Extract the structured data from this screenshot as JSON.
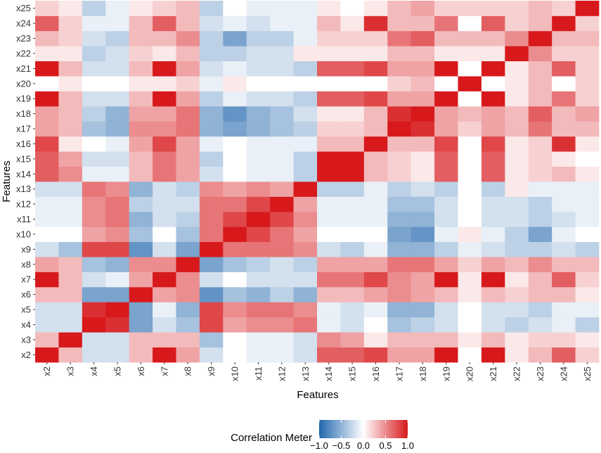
{
  "chart_data": {
    "type": "heatmap",
    "title": "",
    "xlabel": "Features",
    "ylabel": "Features",
    "x_labels": [
      "x2",
      "x3",
      "x4",
      "x5",
      "x6",
      "x7",
      "x8",
      "x9",
      "x10",
      "x11",
      "x12",
      "x13",
      "x14",
      "x15",
      "x16",
      "x17",
      "x18",
      "x19",
      "x20",
      "x21",
      "x22",
      "x23",
      "x24",
      "x25"
    ],
    "y_labels": [
      "x2",
      "x3",
      "x4",
      "x5",
      "x6",
      "x7",
      "x8",
      "x9",
      "x10",
      "x11",
      "x12",
      "x13",
      "x14",
      "x15",
      "x16",
      "x17",
      "x18",
      "x19",
      "x20",
      "x21",
      "x22",
      "x23",
      "x24",
      "x25"
    ],
    "values": [
      [
        1.0,
        0.3,
        -0.2,
        -0.2,
        0.3,
        1.0,
        0.4,
        -0.2,
        0.0,
        -0.1,
        -0.1,
        -0.2,
        0.7,
        0.7,
        0.8,
        0.4,
        0.4,
        1.0,
        0.0,
        1.0,
        0.1,
        0.3,
        0.7,
        0.2
      ],
      [
        0.3,
        1.0,
        -0.2,
        -0.2,
        0.3,
        0.3,
        0.3,
        -0.4,
        0.0,
        -0.1,
        -0.1,
        -0.2,
        0.5,
        0.4,
        0.1,
        0.3,
        0.3,
        0.3,
        0.1,
        0.3,
        0.1,
        0.2,
        0.2,
        0.1
      ],
      [
        -0.2,
        -0.2,
        1.0,
        0.9,
        -0.6,
        -0.2,
        -0.4,
        0.8,
        0.4,
        0.5,
        0.5,
        0.6,
        -0.1,
        -0.2,
        0.0,
        -0.4,
        -0.3,
        -0.2,
        0.0,
        -0.2,
        -0.3,
        -0.2,
        -0.1,
        -0.3
      ],
      [
        -0.2,
        -0.2,
        0.9,
        1.0,
        -0.6,
        -0.1,
        -0.5,
        0.8,
        0.5,
        0.6,
        0.6,
        0.5,
        -0.1,
        -0.2,
        -0.1,
        -0.5,
        -0.5,
        -0.2,
        0.0,
        -0.2,
        -0.2,
        -0.3,
        -0.1,
        -0.1
      ],
      [
        0.3,
        0.3,
        -0.6,
        -0.6,
        1.0,
        0.4,
        0.5,
        -0.7,
        -0.4,
        -0.5,
        -0.3,
        -0.5,
        0.3,
        0.3,
        0.4,
        0.5,
        0.4,
        0.3,
        0.1,
        0.3,
        0.2,
        0.3,
        0.3,
        0.1
      ],
      [
        1.0,
        0.3,
        -0.2,
        -0.1,
        0.4,
        1.0,
        0.5,
        -0.2,
        0.0,
        -0.2,
        -0.2,
        -0.2,
        0.6,
        0.6,
        0.8,
        0.5,
        0.4,
        1.0,
        0.1,
        1.0,
        0.1,
        0.3,
        0.7,
        0.2
      ],
      [
        0.4,
        0.3,
        -0.4,
        -0.5,
        0.5,
        0.5,
        1.0,
        -0.6,
        -0.4,
        -0.3,
        -0.2,
        -0.3,
        0.4,
        0.4,
        0.4,
        0.6,
        0.6,
        0.4,
        0.2,
        0.4,
        0.3,
        0.5,
        0.3,
        0.3
      ],
      [
        -0.2,
        -0.4,
        0.8,
        0.8,
        -0.7,
        -0.2,
        -0.6,
        1.0,
        0.6,
        0.6,
        0.6,
        0.5,
        -0.2,
        -0.3,
        -0.1,
        -0.5,
        -0.5,
        -0.3,
        -0.1,
        -0.2,
        -0.3,
        -0.3,
        -0.2,
        -0.3
      ],
      [
        0.0,
        0.0,
        0.4,
        0.5,
        -0.4,
        0.0,
        -0.4,
        0.6,
        1.0,
        0.8,
        0.6,
        0.4,
        0.0,
        0.0,
        0.0,
        -0.6,
        -0.7,
        -0.1,
        0.1,
        -0.1,
        -0.3,
        -0.6,
        -0.1,
        0.0
      ],
      [
        -0.1,
        -0.1,
        0.5,
        0.6,
        -0.5,
        -0.2,
        -0.3,
        0.6,
        0.8,
        1.0,
        0.8,
        0.5,
        -0.1,
        -0.1,
        -0.1,
        -0.5,
        -0.5,
        -0.2,
        0.0,
        -0.2,
        -0.2,
        -0.3,
        -0.2,
        -0.1
      ],
      [
        -0.1,
        -0.1,
        0.5,
        0.6,
        -0.3,
        -0.2,
        -0.2,
        0.6,
        0.6,
        0.8,
        1.0,
        0.4,
        -0.1,
        -0.1,
        -0.1,
        -0.4,
        -0.4,
        -0.2,
        0.0,
        -0.2,
        -0.2,
        -0.3,
        -0.1,
        -0.1
      ],
      [
        -0.2,
        -0.2,
        0.6,
        0.5,
        -0.5,
        -0.2,
        -0.3,
        0.5,
        0.4,
        0.5,
        0.4,
        1.0,
        -0.3,
        -0.3,
        -0.1,
        -0.3,
        -0.2,
        -0.3,
        0.0,
        -0.3,
        0.1,
        -0.1,
        -0.1,
        -0.1
      ],
      [
        0.7,
        0.5,
        -0.1,
        -0.1,
        0.3,
        0.6,
        0.4,
        -0.2,
        0.0,
        -0.1,
        -0.1,
        -0.3,
        1.0,
        1.0,
        0.3,
        0.2,
        0.1,
        0.7,
        0.0,
        0.7,
        0.1,
        0.2,
        0.3,
        0.1
      ],
      [
        0.7,
        0.4,
        -0.2,
        -0.2,
        0.3,
        0.6,
        0.4,
        -0.3,
        0.0,
        -0.1,
        -0.1,
        -0.3,
        1.0,
        1.0,
        0.3,
        0.2,
        0.1,
        0.7,
        0.0,
        0.7,
        0.1,
        0.2,
        0.1,
        0.0
      ],
      [
        0.8,
        0.1,
        0.0,
        -0.1,
        0.4,
        0.8,
        0.4,
        -0.1,
        0.0,
        -0.1,
        -0.1,
        -0.1,
        0.3,
        0.3,
        1.0,
        0.3,
        0.3,
        0.8,
        0.0,
        0.8,
        0.1,
        0.2,
        0.9,
        0.1
      ],
      [
        0.4,
        0.3,
        -0.4,
        -0.5,
        0.5,
        0.5,
        0.6,
        -0.5,
        -0.6,
        -0.5,
        -0.4,
        -0.3,
        0.2,
        0.2,
        0.3,
        1.0,
        0.9,
        0.4,
        0.2,
        0.4,
        0.3,
        0.6,
        0.3,
        0.3
      ],
      [
        0.4,
        0.3,
        -0.3,
        -0.5,
        0.4,
        0.4,
        0.6,
        -0.5,
        -0.7,
        -0.5,
        -0.4,
        -0.2,
        0.1,
        0.1,
        0.3,
        0.9,
        1.0,
        0.4,
        0.3,
        0.4,
        0.3,
        0.7,
        0.3,
        0.4
      ],
      [
        1.0,
        0.3,
        -0.2,
        -0.2,
        0.3,
        1.0,
        0.4,
        -0.3,
        -0.1,
        -0.2,
        -0.2,
        -0.3,
        0.7,
        0.7,
        0.8,
        0.4,
        0.4,
        1.0,
        0.0,
        1.0,
        0.1,
        0.3,
        0.6,
        0.2
      ],
      [
        0.0,
        0.1,
        0.0,
        0.0,
        0.1,
        0.1,
        0.2,
        -0.1,
        0.1,
        0.0,
        0.0,
        0.0,
        0.0,
        0.0,
        0.0,
        0.2,
        0.3,
        0.0,
        1.0,
        0.0,
        0.1,
        0.3,
        0.0,
        0.2
      ],
      [
        1.0,
        0.3,
        -0.2,
        -0.2,
        0.3,
        1.0,
        0.4,
        -0.2,
        -0.1,
        -0.2,
        -0.2,
        -0.3,
        0.7,
        0.7,
        0.8,
        0.4,
        0.4,
        1.0,
        0.0,
        1.0,
        0.1,
        0.3,
        0.7,
        0.2
      ],
      [
        0.1,
        0.1,
        -0.3,
        -0.2,
        0.2,
        0.1,
        0.3,
        -0.3,
        -0.3,
        -0.2,
        -0.2,
        0.1,
        0.1,
        0.1,
        0.1,
        0.3,
        0.3,
        0.1,
        0.1,
        0.1,
        1.0,
        0.5,
        0.2,
        0.2
      ],
      [
        0.3,
        0.2,
        -0.2,
        -0.3,
        0.3,
        0.3,
        0.5,
        -0.3,
        -0.6,
        -0.3,
        -0.3,
        -0.1,
        0.2,
        0.2,
        0.2,
        0.6,
        0.7,
        0.3,
        0.3,
        0.3,
        0.5,
        1.0,
        0.3,
        0.3
      ],
      [
        0.7,
        0.2,
        -0.1,
        -0.1,
        0.3,
        0.7,
        0.3,
        -0.2,
        -0.1,
        -0.2,
        -0.1,
        -0.1,
        0.3,
        0.1,
        0.9,
        0.3,
        0.3,
        0.6,
        0.0,
        0.7,
        0.2,
        0.3,
        1.0,
        0.2
      ],
      [
        0.2,
        0.1,
        -0.3,
        -0.1,
        0.1,
        0.2,
        0.3,
        -0.3,
        0.0,
        -0.1,
        -0.1,
        -0.1,
        0.1,
        0.0,
        0.1,
        0.3,
        0.4,
        0.2,
        0.2,
        0.2,
        0.2,
        0.3,
        0.2,
        1.0
      ]
    ],
    "colorscale": {
      "low_color": "#2166ac",
      "mid_color": "#ffffff",
      "high_color": "#d7191c",
      "min": -1.0,
      "max": 1.0
    },
    "legend": {
      "title": "Correlation Meter",
      "ticks": [
        -1.0,
        -0.5,
        0.0,
        0.5,
        1.0
      ],
      "tick_labels": [
        "−1.0",
        "−0.5",
        "0.0",
        "0.5",
        "1.0"
      ],
      "placement": "bottom"
    }
  }
}
